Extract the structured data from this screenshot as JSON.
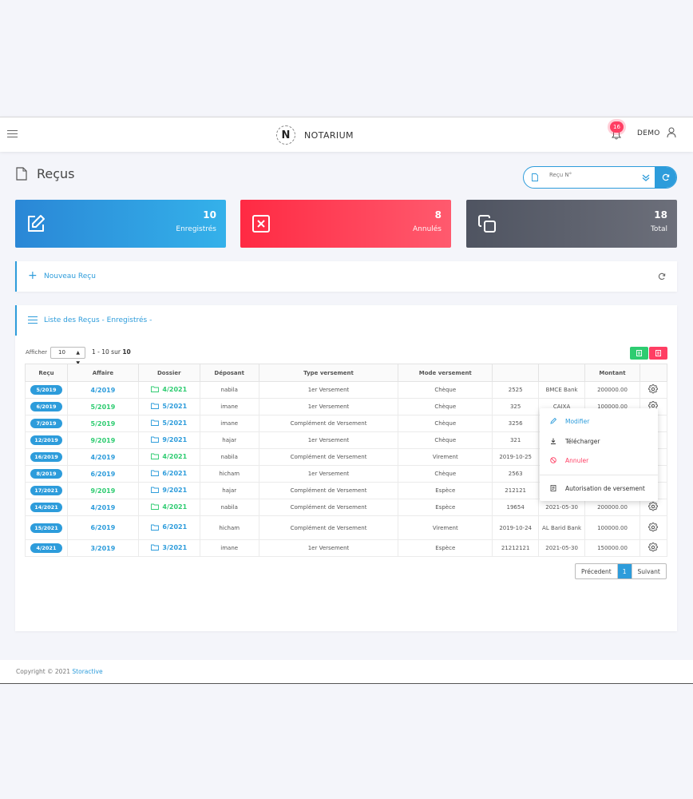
{
  "app": {
    "brand": "NOTARIUM",
    "notifications_count": "16",
    "user": "DEMO"
  },
  "page": {
    "title": "Reçus"
  },
  "search": {
    "placeholder": "Reçu N°"
  },
  "stats": [
    {
      "value": "10",
      "label": "Enregistrés"
    },
    {
      "value": "8",
      "label": "Annulés"
    },
    {
      "value": "18",
      "label": "Total"
    }
  ],
  "new_panel": {
    "label": "Nouveau Reçu"
  },
  "list": {
    "title": "Liste des Reçus - Enregistrés -",
    "show_label": "Afficher",
    "page_size": "10",
    "range_prefix": "1 - 10 sur",
    "range_total": "10",
    "columns": [
      "Reçu",
      "Affaire",
      "Dossier",
      "Déposant",
      "Type versement",
      "Mode versement",
      "",
      "",
      "Montant",
      ""
    ],
    "rows": [
      {
        "recu": "5/2019",
        "affaire": "4/2019",
        "affaire_color": "blue",
        "dossier": "4/2021",
        "dossier_color": "green",
        "deposant": "nabila",
        "type": "1er Versement",
        "mode": "Chèque",
        "ref": "2525",
        "banque": "BMCE Bank",
        "montant": "200000.00"
      },
      {
        "recu": "6/2019",
        "affaire": "5/2019",
        "affaire_color": "green",
        "dossier": "5/2021",
        "dossier_color": "blue",
        "deposant": "imane",
        "type": "1er Versement",
        "mode": "Chèque",
        "ref": "325",
        "banque": "CAIXA",
        "montant": "100000.00"
      },
      {
        "recu": "7/2019",
        "affaire": "5/2019",
        "affaire_color": "green",
        "dossier": "5/2021",
        "dossier_color": "blue",
        "deposant": "imane",
        "type": "Complément de Versement",
        "mode": "Chèque",
        "ref": "3256",
        "banque": "",
        "montant": ""
      },
      {
        "recu": "12/2019",
        "affaire": "9/2019",
        "affaire_color": "green",
        "dossier": "9/2021",
        "dossier_color": "blue",
        "deposant": "hajar",
        "type": "1er Versement",
        "mode": "Chèque",
        "ref": "321",
        "banque": "",
        "montant": ""
      },
      {
        "recu": "16/2019",
        "affaire": "4/2019",
        "affaire_color": "blue",
        "dossier": "4/2021",
        "dossier_color": "green",
        "deposant": "nabila",
        "type": "Complément de Versement",
        "mode": "Virement",
        "ref": "2019-10-25",
        "banque": "",
        "montant": ""
      },
      {
        "recu": "8/2019",
        "affaire": "6/2019",
        "affaire_color": "blue",
        "dossier": "6/2021",
        "dossier_color": "blue",
        "deposant": "hicham",
        "type": "1er Versement",
        "mode": "Chèque",
        "ref": "2563",
        "banque": "",
        "montant": ""
      },
      {
        "recu": "17/2021",
        "affaire": "9/2019",
        "affaire_color": "green",
        "dossier": "9/2021",
        "dossier_color": "blue",
        "deposant": "hajar",
        "type": "Complément de Versement",
        "mode": "Espèce",
        "ref": "212121",
        "banque": "",
        "montant": ""
      },
      {
        "recu": "14/2021",
        "affaire": "4/2019",
        "affaire_color": "blue",
        "dossier": "4/2021",
        "dossier_color": "green",
        "deposant": "nabila",
        "type": "Complément de Versement",
        "mode": "Espèce",
        "ref": "19654",
        "banque": "2021-05-30",
        "montant": "200000.00"
      },
      {
        "recu": "15/2021",
        "affaire": "6/2019",
        "affaire_color": "blue",
        "dossier": "6/2021",
        "dossier_color": "blue",
        "deposant": "hicham",
        "type": "Complément de Versement",
        "mode": "Virement",
        "ref": "2019-10-24",
        "banque": "AL Barid Bank",
        "montant": "100000.00"
      },
      {
        "recu": "4/2021",
        "affaire": "3/2019",
        "affaire_color": "blue",
        "dossier": "3/2021",
        "dossier_color": "blue",
        "deposant": "imane",
        "type": "1er Versement",
        "mode": "Espèce",
        "ref": "21212121",
        "banque": "2021-05-30",
        "montant": "150000.00"
      }
    ],
    "pagination": {
      "prev": "Précedent",
      "current": "1",
      "next": "Suivant"
    }
  },
  "context_menu": {
    "items": [
      "Modifier",
      "Télécharger",
      "Annuler",
      "Autorisation de versement"
    ]
  },
  "footer": {
    "copyright": "Copyright © 2021",
    "company": "Storactive"
  },
  "colors": {
    "primary": "#2d9cdb",
    "danger": "#ff3e63",
    "success": "#2ecc71",
    "dark": "#5a5e6a"
  }
}
